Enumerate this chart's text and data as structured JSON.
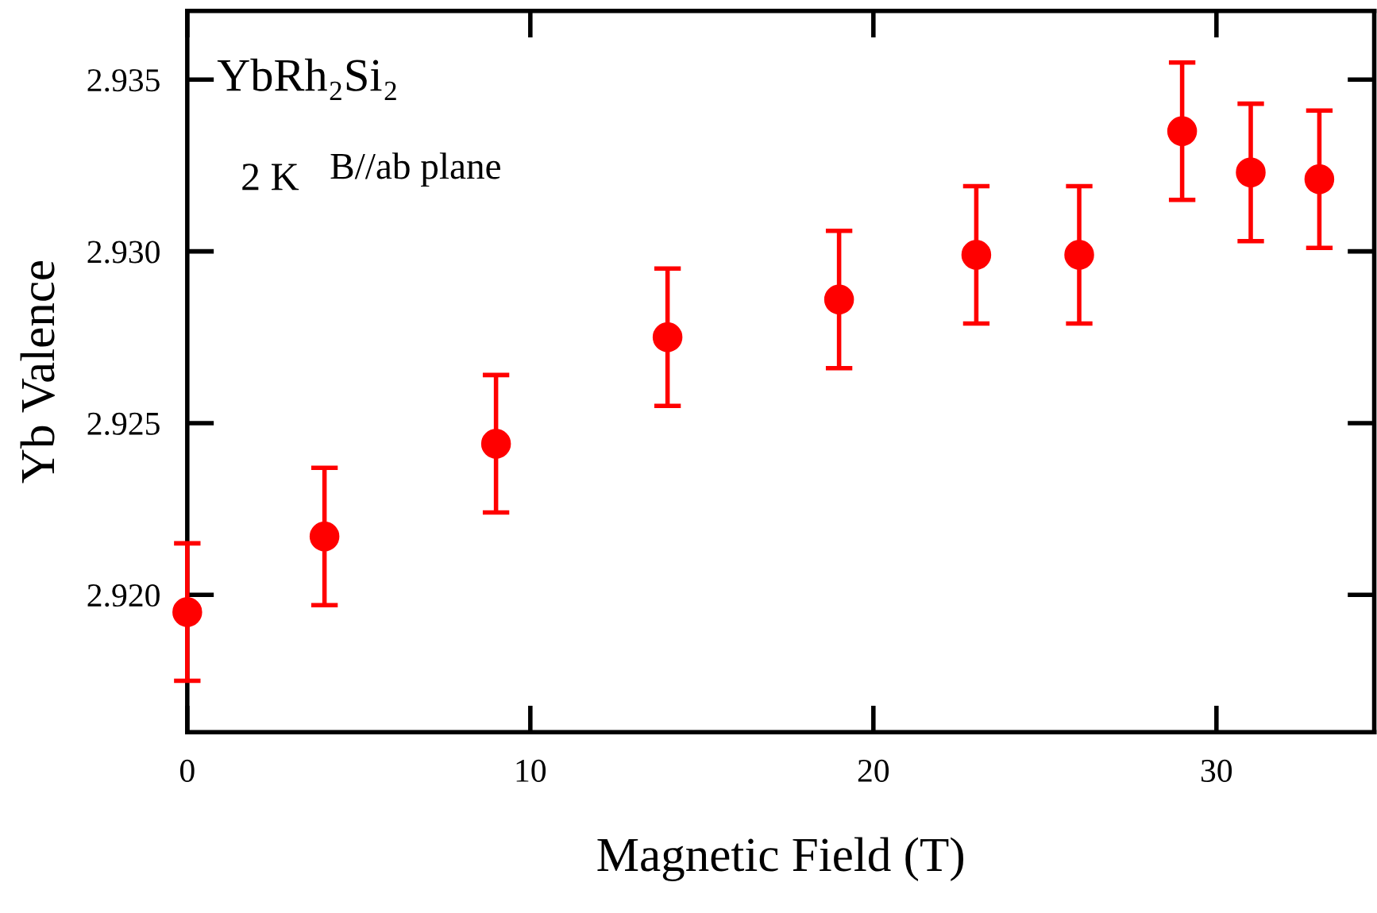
{
  "chart_data": {
    "type": "scatter",
    "xlabel": "Magnetic Field (T)",
    "ylabel": "Yb Valence",
    "annotations": [
      "YbRh₂Si₂",
      "2 K",
      "B//ab plane"
    ],
    "x": [
      0,
      4,
      9,
      14,
      19,
      23,
      26,
      29,
      31,
      33
    ],
    "series": [
      {
        "color": "#ff0000",
        "values": [
          2.9195,
          2.9217,
          2.9244,
          2.9275,
          2.9286,
          2.9299,
          2.9299,
          2.9335,
          2.9323,
          2.9321
        ],
        "errors": [
          0.002,
          0.002,
          0.002,
          0.002,
          0.002,
          0.002,
          0.002,
          0.002,
          0.002,
          0.002
        ]
      }
    ],
    "xlim": [
      0,
      34.6
    ],
    "xticks": [
      0,
      10,
      20,
      30
    ],
    "ylim": [
      2.916,
      2.937
    ],
    "yticks": [
      {
        "value": 2.92,
        "label": "2.920"
      },
      {
        "value": 2.925,
        "label": "2.925"
      },
      {
        "value": 2.93,
        "label": "2.930"
      },
      {
        "value": 2.935,
        "label": "2.935"
      }
    ],
    "marker": "circle",
    "grid": false,
    "legend": false
  }
}
